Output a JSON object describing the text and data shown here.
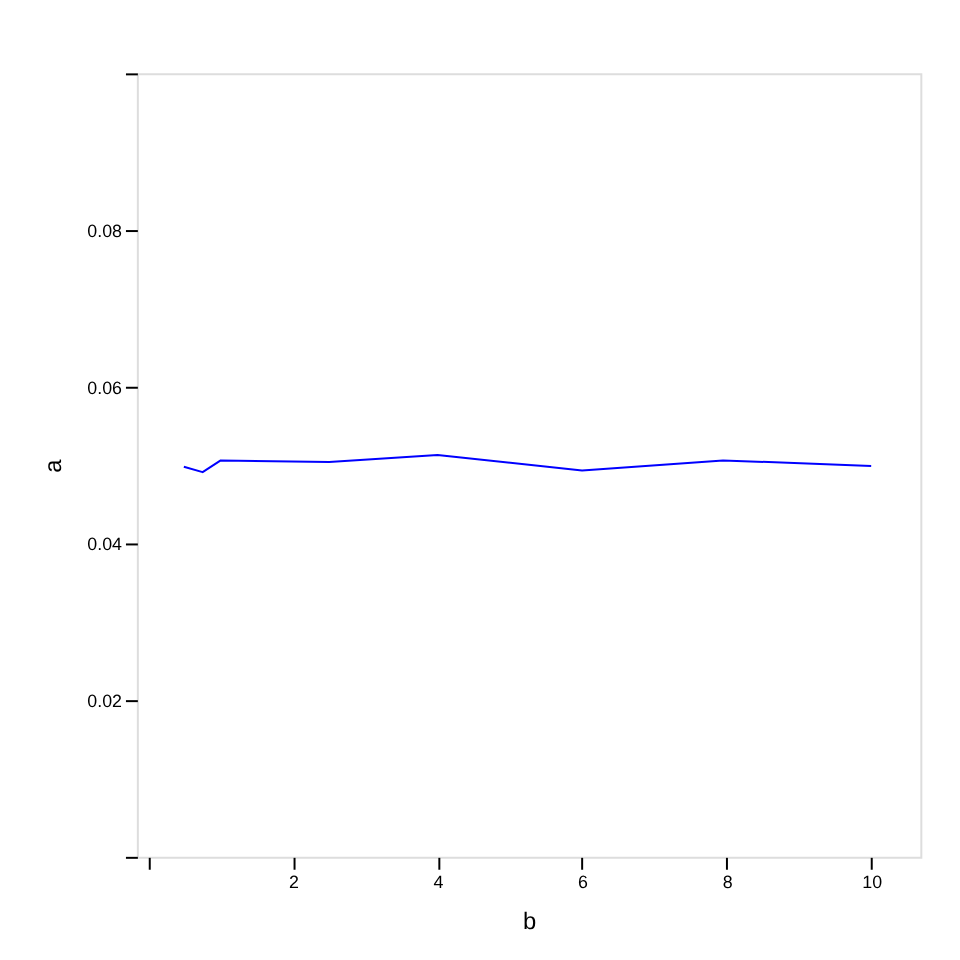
{
  "chart_data": {
    "type": "line",
    "xlabel": "b",
    "ylabel": "a",
    "x": [
      0.49,
      0.75,
      1.0,
      2.5,
      4.0,
      6.0,
      7.95,
      10.0
    ],
    "series": [
      {
        "color": "#0000ff",
        "values": [
          0.0498,
          0.0491,
          0.0506,
          0.0504,
          0.0513,
          0.0493,
          0.0506,
          0.0499
        ]
      }
    ],
    "xlim": [
      -0.16,
      10.68
    ],
    "ylim": [
      0.0,
      0.1
    ],
    "xticks": [
      {
        "value": 0,
        "label": null
      },
      2,
      4,
      6,
      8,
      10
    ],
    "yticks": [
      {
        "value": 0.0,
        "label": null
      },
      0.02,
      0.04,
      0.06,
      0.08,
      {
        "value": 0.1,
        "label": null
      }
    ],
    "grid": false,
    "marker": "none",
    "line_style": "solid"
  }
}
